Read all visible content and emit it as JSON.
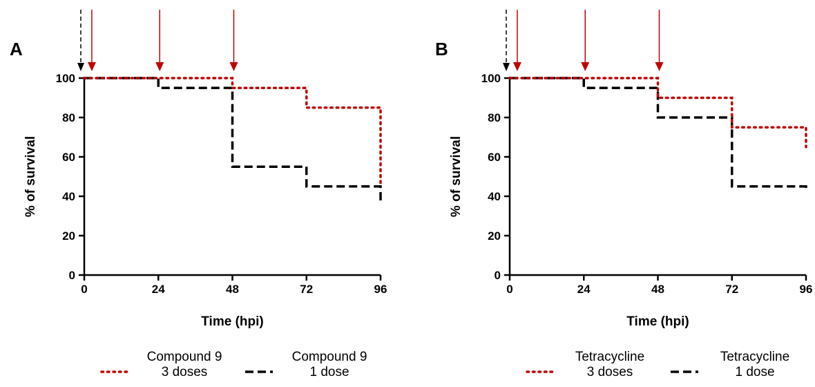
{
  "colors": {
    "three_doses": "#c00000",
    "one_dose": "#000000",
    "arrow_red": "#c00000",
    "arrow_black": "#000000"
  },
  "chart_data": [
    {
      "panel": "A",
      "type": "line",
      "step": true,
      "xlabel": "Time (hpi)",
      "ylabel": "% of survival",
      "xlim": [
        0,
        96
      ],
      "ylim": [
        0,
        100
      ],
      "xticks": [
        0,
        24,
        48,
        72,
        96
      ],
      "yticks": [
        0,
        20,
        40,
        60,
        80,
        100
      ],
      "grid": false,
      "legend_position": "bottom",
      "dose_arrows": {
        "black_hpi": [
          0
        ],
        "red_hpi": [
          2,
          24,
          48
        ]
      },
      "series": [
        {
          "name": "Compound 9\n3 doses",
          "line_style": "dotted",
          "color": "#c00000",
          "x": [
            0,
            24,
            48,
            72,
            96
          ],
          "y": [
            100,
            100,
            95,
            85,
            45
          ]
        },
        {
          "name": "Compound 9\n1 dose",
          "line_style": "dashed",
          "color": "#000000",
          "x": [
            0,
            24,
            48,
            72,
            96
          ],
          "y": [
            100,
            95,
            55,
            45,
            36
          ]
        }
      ]
    },
    {
      "panel": "B",
      "type": "line",
      "step": true,
      "xlabel": "Time (hpi)",
      "ylabel": "% of survival",
      "xlim": [
        0,
        96
      ],
      "ylim": [
        0,
        100
      ],
      "xticks": [
        0,
        24,
        48,
        72,
        96
      ],
      "yticks": [
        0,
        20,
        40,
        60,
        80,
        100
      ],
      "grid": false,
      "legend_position": "bottom",
      "dose_arrows": {
        "black_hpi": [
          0
        ],
        "red_hpi": [
          2,
          24,
          48
        ]
      },
      "series": [
        {
          "name": "Tetracycline\n3 doses",
          "line_style": "dotted",
          "color": "#c00000",
          "x": [
            0,
            24,
            48,
            72,
            96
          ],
          "y": [
            100,
            100,
            90,
            75,
            65
          ]
        },
        {
          "name": "Tetracycline\n1 dose",
          "line_style": "dashed",
          "color": "#000000",
          "x": [
            0,
            24,
            48,
            72,
            96
          ],
          "y": [
            100,
            95,
            80,
            45,
            44
          ]
        }
      ]
    }
  ]
}
